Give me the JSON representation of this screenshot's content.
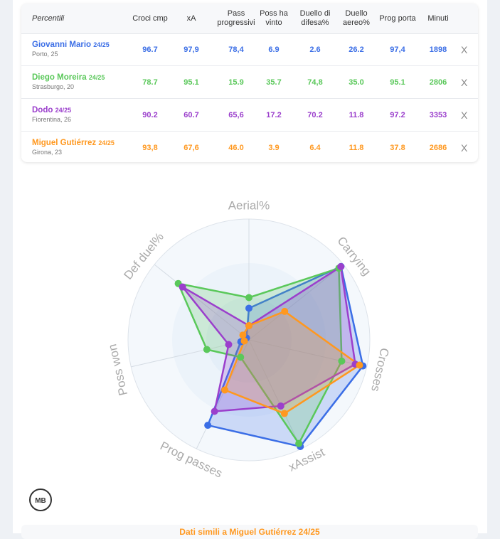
{
  "table": {
    "header": [
      "Percentili",
      "Croci cmp",
      "xA",
      "Pass progressivi",
      "Poss ha vinto",
      "Duello di difesa%",
      "Duello aereo%",
      "Prog porta",
      "Minuti"
    ],
    "rows": [
      {
        "name": "Giovanni Mario",
        "season": "24/25",
        "club": "Porto, 25",
        "cells": [
          "96.7",
          "97,9",
          "78,4",
          "6.9",
          "2.6",
          "26.2",
          "97,4",
          "1898"
        ],
        "remove": "X"
      },
      {
        "name": "Diego Moreira",
        "season": "24/25",
        "club": "Strasburgo, 20",
        "cells": [
          "78.7",
          "95.1",
          "15.9",
          "35.7",
          "74,8",
          "35.0",
          "95.1",
          "2806"
        ],
        "remove": "X"
      },
      {
        "name": "Dodo",
        "season": "24/25",
        "club": "Fiorentina, 26",
        "cells": [
          "90.2",
          "60.7",
          "65,6",
          "17.2",
          "70.2",
          "11.8",
          "97.2",
          "3353"
        ],
        "remove": "X"
      },
      {
        "name": "Miguel Gutiérrez",
        "season": "24/25",
        "club": "Girona, 23",
        "cells": [
          "93,8",
          "67,6",
          "46.0",
          "3.9",
          "6.4",
          "11.8",
          "37.8",
          "2686"
        ],
        "remove": "X"
      }
    ]
  },
  "chart_data": {
    "type": "radar",
    "categories": [
      "Aerial%",
      "Carrying",
      "Crosses",
      "xAssist",
      "Prog passes",
      "Poss won",
      "Def duel%"
    ],
    "rlim": [
      0,
      100
    ],
    "series": [
      {
        "name": "Giovanni Mario",
        "color": "#3b6ee6",
        "values": [
          26.2,
          97.4,
          96.7,
          97.9,
          78.4,
          6.9,
          2.6
        ]
      },
      {
        "name": "Diego Moreira",
        "color": "#5ac85a",
        "values": [
          35.0,
          95.1,
          78.7,
          95.1,
          15.9,
          35.7,
          74.8
        ]
      },
      {
        "name": "Dodo",
        "color": "#9b3fcc",
        "values": [
          11.8,
          97.2,
          90.2,
          60.7,
          65.6,
          17.2,
          70.2
        ]
      },
      {
        "name": "Miguel Gutiérrez",
        "color": "#ff981f",
        "values": [
          11.8,
          37.8,
          93.8,
          67.6,
          46.0,
          3.9,
          6.4
        ]
      }
    ]
  },
  "logo": "MB",
  "footer": "Dati simili a Miguel Gutiérrez 24/25"
}
